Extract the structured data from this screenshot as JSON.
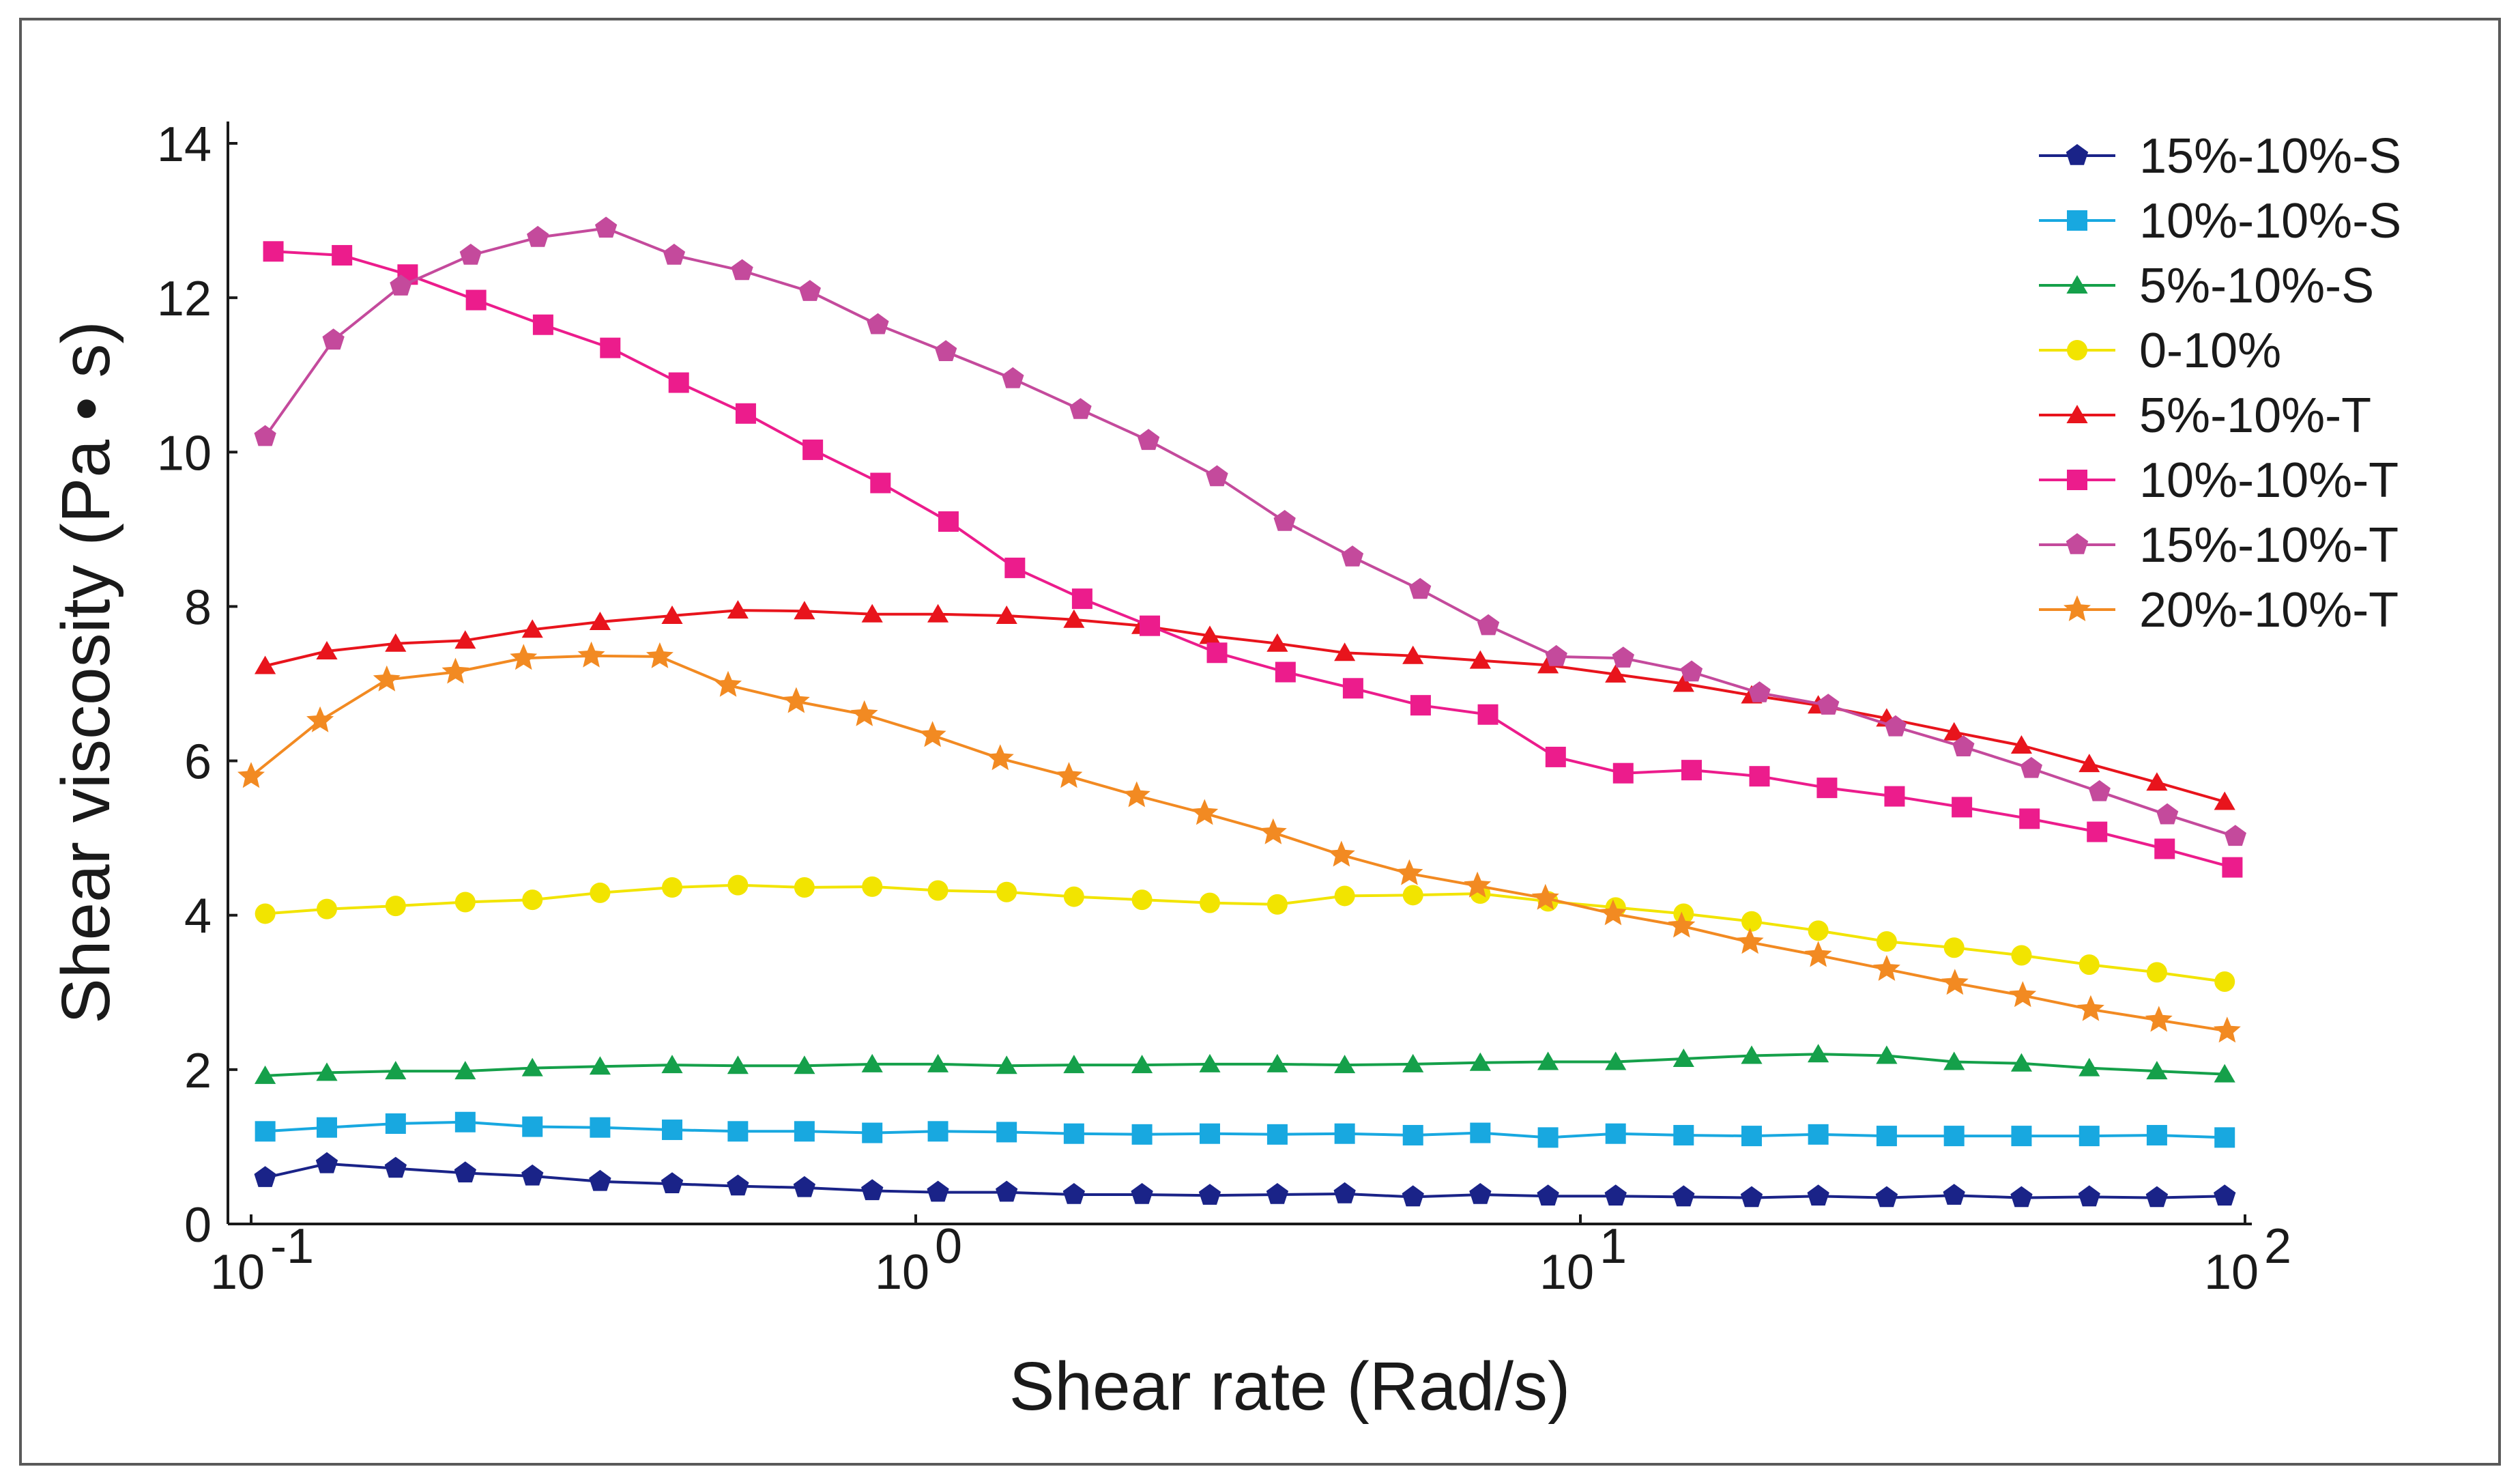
{
  "chart_data": {
    "type": "line",
    "title": "",
    "xlabel": "Shear rate (Rad/s)",
    "ylabel": "Shear viscosity (Pa • s)",
    "xscale": "log",
    "xlim": [
      0.1,
      100
    ],
    "ylim": [
      0,
      14
    ],
    "grid": false,
    "legend_position": "top-right",
    "x_ticks": [
      {
        "base": "10",
        "exp": "-1",
        "value": 0.1
      },
      {
        "base": "10",
        "exp": "0",
        "value": 1
      },
      {
        "base": "10",
        "exp": "1",
        "value": 10
      },
      {
        "base": "10",
        "exp": "2",
        "value": 100
      }
    ],
    "y_ticks": [
      0,
      2,
      4,
      6,
      8,
      10,
      12,
      14
    ],
    "series": [
      {
        "name": "15%-10%-S",
        "color": "#1a2388",
        "marker": "pentagon",
        "x": [
          0.105,
          0.13,
          0.165,
          0.21,
          0.265,
          0.335,
          0.43,
          0.54,
          0.68,
          0.86,
          1.08,
          1.37,
          1.73,
          2.19,
          2.77,
          3.5,
          4.42,
          5.6,
          7.07,
          8.94,
          11.3,
          14.3,
          18.1,
          22.8,
          28.9,
          36.5,
          46.1,
          58.3,
          73.7,
          93.2
        ],
        "values": [
          0.6,
          0.78,
          0.72,
          0.66,
          0.62,
          0.55,
          0.52,
          0.49,
          0.47,
          0.43,
          0.41,
          0.41,
          0.38,
          0.38,
          0.37,
          0.38,
          0.39,
          0.35,
          0.38,
          0.36,
          0.36,
          0.35,
          0.34,
          0.36,
          0.34,
          0.37,
          0.34,
          0.35,
          0.34,
          0.36
        ]
      },
      {
        "name": "10%-10%-S",
        "color": "#18a8e0",
        "marker": "square",
        "x": [
          0.105,
          0.13,
          0.165,
          0.21,
          0.265,
          0.335,
          0.43,
          0.54,
          0.68,
          0.86,
          1.08,
          1.37,
          1.73,
          2.19,
          2.77,
          3.5,
          4.42,
          5.6,
          7.07,
          8.94,
          11.3,
          14.3,
          18.1,
          22.8,
          28.9,
          36.5,
          46.1,
          58.3,
          73.7,
          93.2
        ],
        "values": [
          1.2,
          1.25,
          1.3,
          1.32,
          1.26,
          1.25,
          1.22,
          1.2,
          1.2,
          1.18,
          1.2,
          1.19,
          1.17,
          1.16,
          1.17,
          1.16,
          1.17,
          1.15,
          1.18,
          1.12,
          1.17,
          1.15,
          1.14,
          1.16,
          1.14,
          1.14,
          1.14,
          1.14,
          1.15,
          1.12
        ]
      },
      {
        "name": "5%-10%-S",
        "color": "#15a04a",
        "marker": "triangle",
        "x": [
          0.105,
          0.13,
          0.165,
          0.21,
          0.265,
          0.335,
          0.43,
          0.54,
          0.68,
          0.86,
          1.08,
          1.37,
          1.73,
          2.19,
          2.77,
          3.5,
          4.42,
          5.6,
          7.07,
          8.94,
          11.3,
          14.3,
          18.1,
          22.8,
          28.9,
          36.5,
          46.1,
          58.3,
          73.7,
          93.2
        ],
        "values": [
          1.92,
          1.96,
          1.98,
          1.98,
          2.02,
          2.04,
          2.06,
          2.05,
          2.05,
          2.07,
          2.07,
          2.05,
          2.06,
          2.06,
          2.07,
          2.07,
          2.06,
          2.07,
          2.09,
          2.1,
          2.1,
          2.14,
          2.18,
          2.2,
          2.18,
          2.1,
          2.08,
          2.02,
          1.98,
          1.94
        ]
      },
      {
        "name": "0-10%",
        "color": "#f2e400",
        "marker": "circle",
        "x": [
          0.105,
          0.13,
          0.165,
          0.21,
          0.265,
          0.335,
          0.43,
          0.54,
          0.68,
          0.86,
          1.08,
          1.37,
          1.73,
          2.19,
          2.77,
          3.5,
          4.42,
          5.6,
          7.07,
          8.94,
          11.3,
          14.3,
          18.1,
          22.8,
          28.9,
          36.5,
          46.1,
          58.3,
          73.7,
          93.2
        ],
        "values": [
          4.02,
          4.08,
          4.12,
          4.17,
          4.2,
          4.29,
          4.36,
          4.39,
          4.36,
          4.37,
          4.32,
          4.3,
          4.24,
          4.2,
          4.16,
          4.14,
          4.25,
          4.26,
          4.28,
          4.18,
          4.1,
          4.02,
          3.92,
          3.8,
          3.66,
          3.58,
          3.48,
          3.36,
          3.26,
          3.14
        ]
      },
      {
        "name": "5%-10%-T",
        "color": "#e8141c",
        "marker": "triangle",
        "x": [
          0.105,
          0.13,
          0.165,
          0.21,
          0.265,
          0.335,
          0.43,
          0.54,
          0.68,
          0.86,
          1.08,
          1.37,
          1.73,
          2.19,
          2.77,
          3.5,
          4.42,
          5.6,
          7.07,
          8.94,
          11.3,
          14.3,
          18.1,
          22.8,
          28.9,
          36.5,
          46.1,
          58.3,
          73.7,
          93.2
        ],
        "values": [
          7.23,
          7.42,
          7.52,
          7.56,
          7.7,
          7.8,
          7.88,
          7.95,
          7.94,
          7.9,
          7.9,
          7.88,
          7.83,
          7.75,
          7.62,
          7.52,
          7.4,
          7.36,
          7.3,
          7.24,
          7.12,
          7.0,
          6.85,
          6.72,
          6.55,
          6.37,
          6.2,
          5.96,
          5.72,
          5.47
        ]
      },
      {
        "name": "10%-10%-T",
        "color": "#ec1c8c",
        "marker": "square",
        "x": [
          0.108,
          0.137,
          0.172,
          0.218,
          0.275,
          0.347,
          0.44,
          0.555,
          0.7,
          0.885,
          1.12,
          1.41,
          1.78,
          2.25,
          2.84,
          3.6,
          4.55,
          5.75,
          7.26,
          9.18,
          11.6,
          14.7,
          18.6,
          23.5,
          29.7,
          37.5,
          47.4,
          59.9,
          75.7,
          95.7
        ],
        "values": [
          12.6,
          12.55,
          12.3,
          11.97,
          11.65,
          11.35,
          10.9,
          10.5,
          10.03,
          9.6,
          9.1,
          8.5,
          8.1,
          7.75,
          7.4,
          7.15,
          6.94,
          6.72,
          6.6,
          6.05,
          5.84,
          5.88,
          5.8,
          5.65,
          5.54,
          5.4,
          5.25,
          5.08,
          4.86,
          4.62
        ]
      },
      {
        "name": "15%-10%-T",
        "color": "#c44a9c",
        "marker": "pentagon",
        "x": [
          0.105,
          0.133,
          0.168,
          0.214,
          0.27,
          0.342,
          0.433,
          0.548,
          0.693,
          0.877,
          1.11,
          1.4,
          1.77,
          2.24,
          2.84,
          3.59,
          4.54,
          5.74,
          7.27,
          9.2,
          11.6,
          14.7,
          18.6,
          23.6,
          29.8,
          37.7,
          47.7,
          60.4,
          76.4,
          96.7
        ],
        "values": [
          10.2,
          11.45,
          12.15,
          12.55,
          12.78,
          12.9,
          12.55,
          12.35,
          12.08,
          11.65,
          11.3,
          10.95,
          10.55,
          10.15,
          9.68,
          9.1,
          8.64,
          8.22,
          7.75,
          7.35,
          7.33,
          7.15,
          6.88,
          6.72,
          6.44,
          6.18,
          5.9,
          5.6,
          5.3,
          5.02
        ]
      },
      {
        "name": "20%-10%-T",
        "color": "#f28a22",
        "marker": "star",
        "x": [
          0.1,
          0.127,
          0.16,
          0.203,
          0.257,
          0.325,
          0.412,
          0.522,
          0.661,
          0.837,
          1.06,
          1.34,
          1.7,
          2.15,
          2.72,
          3.45,
          4.37,
          5.53,
          7.0,
          8.86,
          11.2,
          14.2,
          18.0,
          22.8,
          28.9,
          36.6,
          46.3,
          58.6,
          74.2,
          94.0
        ],
        "values": [
          5.8,
          6.52,
          7.05,
          7.15,
          7.33,
          7.36,
          7.35,
          6.98,
          6.77,
          6.6,
          6.33,
          6.03,
          5.8,
          5.55,
          5.32,
          5.07,
          4.78,
          4.54,
          4.38,
          4.22,
          4.02,
          3.86,
          3.65,
          3.48,
          3.3,
          3.12,
          2.96,
          2.78,
          2.64,
          2.5
        ]
      }
    ]
  }
}
